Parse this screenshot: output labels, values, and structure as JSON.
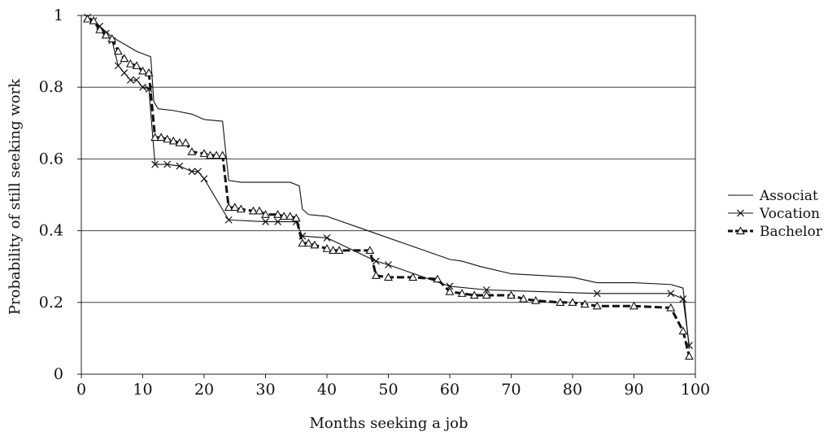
{
  "chart_data": {
    "type": "line",
    "title": "",
    "xlabel": "Months seeking a job",
    "ylabel": "Probability of still seeking work",
    "xlim": [
      0,
      100
    ],
    "ylim": [
      0,
      1
    ],
    "xticks": [
      0,
      10,
      20,
      30,
      40,
      50,
      60,
      70,
      80,
      90,
      100
    ],
    "yticks": [
      0,
      0.2,
      0.4,
      0.6,
      0.8,
      1
    ],
    "ytick_labels": [
      "0",
      "0.2",
      "0.4",
      "0.6",
      "0.8",
      "1"
    ],
    "grid": "horizontal",
    "legend_position": "right",
    "series": [
      {
        "name": "Associat",
        "style": "thin solid line, no markers",
        "color": "#111111",
        "points": [
          [
            1,
            0.995
          ],
          [
            3,
            0.97
          ],
          [
            5,
            0.94
          ],
          [
            7,
            0.92
          ],
          [
            9,
            0.9
          ],
          [
            10.5,
            0.89
          ],
          [
            11.3,
            0.885
          ],
          [
            11.8,
            0.76
          ],
          [
            12.5,
            0.74
          ],
          [
            15,
            0.735
          ],
          [
            18,
            0.725
          ],
          [
            20,
            0.71
          ],
          [
            23,
            0.705
          ],
          [
            24,
            0.54
          ],
          [
            26,
            0.535
          ],
          [
            30,
            0.535
          ],
          [
            34,
            0.535
          ],
          [
            35.5,
            0.525
          ],
          [
            36,
            0.46
          ],
          [
            37,
            0.445
          ],
          [
            40,
            0.44
          ],
          [
            45,
            0.41
          ],
          [
            50,
            0.38
          ],
          [
            55,
            0.35
          ],
          [
            60,
            0.32
          ],
          [
            62,
            0.315
          ],
          [
            65,
            0.3
          ],
          [
            70,
            0.28
          ],
          [
            75,
            0.275
          ],
          [
            80,
            0.27
          ],
          [
            84,
            0.255
          ],
          [
            90,
            0.255
          ],
          [
            96,
            0.25
          ],
          [
            98,
            0.24
          ],
          [
            99,
            0.07
          ]
        ]
      },
      {
        "name": "Vocation",
        "style": "thin solid line, x markers",
        "color": "#111111",
        "points": [
          [
            1,
            0.995
          ],
          [
            2,
            0.985
          ],
          [
            3,
            0.97
          ],
          [
            4,
            0.95
          ],
          [
            5,
            0.93
          ],
          [
            6,
            0.86
          ],
          [
            7,
            0.84
          ],
          [
            8,
            0.82
          ],
          [
            9,
            0.82
          ],
          [
            10,
            0.8
          ],
          [
            11,
            0.795
          ],
          [
            12,
            0.585
          ],
          [
            14,
            0.585
          ],
          [
            16,
            0.58
          ],
          [
            18,
            0.565
          ],
          [
            19,
            0.565
          ],
          [
            20,
            0.545
          ],
          [
            24,
            0.43
          ],
          [
            30,
            0.425
          ],
          [
            32,
            0.425
          ],
          [
            35,
            0.425
          ],
          [
            36,
            0.385
          ],
          [
            40,
            0.38
          ],
          [
            48,
            0.315
          ],
          [
            50,
            0.305
          ],
          [
            60,
            0.245
          ],
          [
            66,
            0.235
          ],
          [
            84,
            0.225
          ],
          [
            96,
            0.225
          ],
          [
            98,
            0.21
          ],
          [
            99,
            0.08
          ]
        ]
      },
      {
        "name": "Bachelor",
        "style": "thick dashed line, triangle markers",
        "color": "#111111",
        "points": [
          [
            1,
            0.99
          ],
          [
            2,
            0.985
          ],
          [
            3,
            0.96
          ],
          [
            4,
            0.945
          ],
          [
            5,
            0.935
          ],
          [
            6,
            0.9
          ],
          [
            7,
            0.88
          ],
          [
            8,
            0.865
          ],
          [
            9,
            0.86
          ],
          [
            10,
            0.845
          ],
          [
            11,
            0.84
          ],
          [
            12,
            0.66
          ],
          [
            13,
            0.66
          ],
          [
            14,
            0.655
          ],
          [
            15,
            0.65
          ],
          [
            16,
            0.645
          ],
          [
            17,
            0.645
          ],
          [
            18,
            0.62
          ],
          [
            20,
            0.615
          ],
          [
            21,
            0.61
          ],
          [
            22,
            0.61
          ],
          [
            23,
            0.61
          ],
          [
            24,
            0.465
          ],
          [
            25,
            0.465
          ],
          [
            26,
            0.46
          ],
          [
            28,
            0.455
          ],
          [
            29,
            0.455
          ],
          [
            30,
            0.445
          ],
          [
            32,
            0.445
          ],
          [
            33,
            0.44
          ],
          [
            34,
            0.44
          ],
          [
            35,
            0.435
          ],
          [
            36,
            0.365
          ],
          [
            37,
            0.365
          ],
          [
            38,
            0.36
          ],
          [
            40,
            0.35
          ],
          [
            41,
            0.345
          ],
          [
            42,
            0.345
          ],
          [
            47,
            0.345
          ],
          [
            48,
            0.275
          ],
          [
            50,
            0.27
          ],
          [
            54,
            0.27
          ],
          [
            58,
            0.265
          ],
          [
            60,
            0.23
          ],
          [
            62,
            0.225
          ],
          [
            64,
            0.22
          ],
          [
            66,
            0.22
          ],
          [
            70,
            0.22
          ],
          [
            72,
            0.21
          ],
          [
            74,
            0.205
          ],
          [
            78,
            0.2
          ],
          [
            80,
            0.2
          ],
          [
            82,
            0.195
          ],
          [
            84,
            0.19
          ],
          [
            90,
            0.19
          ],
          [
            96,
            0.185
          ],
          [
            98,
            0.12
          ],
          [
            99,
            0.05
          ]
        ]
      }
    ]
  }
}
